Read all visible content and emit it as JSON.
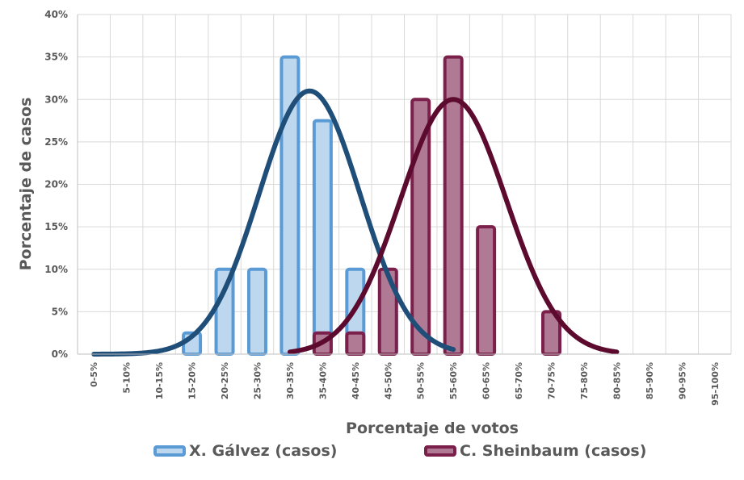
{
  "chart_data": {
    "type": "bar",
    "title": "",
    "xlabel": "Porcentaje de votos",
    "ylabel": "Porcentaje de casos",
    "ylim": [
      0,
      40
    ],
    "yticks": [
      "0%",
      "5%",
      "10%",
      "15%",
      "20%",
      "25%",
      "30%",
      "35%",
      "40%"
    ],
    "categories": [
      "0-5%",
      "5-10%",
      "10-15%",
      "15-20%",
      "20-25%",
      "25-30%",
      "30-35%",
      "35-40%",
      "40-45%",
      "45-50%",
      "50-55%",
      "55-60%",
      "60-65%",
      "65-70%",
      "70-75%",
      "75-80%",
      "80-85%",
      "85-90%",
      "90-95%",
      "95-100%"
    ],
    "grid": true,
    "legend_position": "bottom",
    "series": [
      {
        "name": "X. Gálvez (casos)",
        "color": "#5B9BD5",
        "fill": "#BDD7EE",
        "values": [
          0,
          0,
          0,
          2.5,
          10,
          10,
          35,
          27.5,
          10,
          5,
          0,
          0,
          0,
          0,
          0,
          0,
          0,
          0,
          0,
          0
        ]
      },
      {
        "name": "C. Sheinbaum (casos)",
        "color": "#7B1F4B",
        "fill": "#B07A95",
        "values": [
          0,
          0,
          0,
          0,
          0,
          0,
          0,
          2.5,
          2.5,
          10,
          30,
          35,
          15,
          0,
          5,
          0,
          0,
          0,
          0,
          0
        ]
      }
    ],
    "fitted_curves": [
      {
        "series": "X. Gálvez (casos)",
        "color": "#1F4E79",
        "peak": 31,
        "mean_x": 6.6,
        "sd": 1.55,
        "x_from": 0,
        "x_to": 11
      },
      {
        "series": "C. Sheinbaum (casos)",
        "color": "#5C0A2E",
        "peak": 30,
        "mean_x": 11.0,
        "sd": 1.62,
        "x_from": 6,
        "x_to": 16
      }
    ]
  }
}
